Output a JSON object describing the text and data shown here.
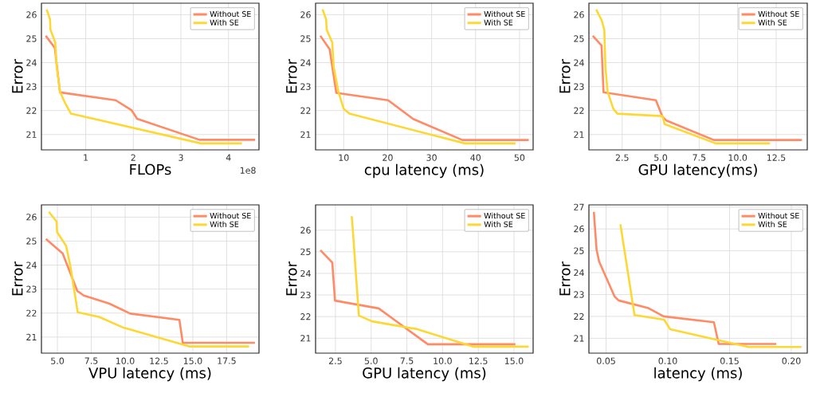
{
  "chart_data": [
    {
      "type": "line",
      "xlabel": "FLOPs",
      "ylabel": "Error",
      "annotations": [
        "1e8"
      ],
      "xlim": [
        0.07,
        4.64
      ],
      "ylim": [
        20.36,
        26.48
      ],
      "xticks": [
        1,
        2,
        3,
        4
      ],
      "yticks": [
        21,
        22,
        23,
        24,
        25,
        26
      ],
      "grid": true,
      "legend": "top right",
      "series": [
        {
          "name": "Without SE",
          "color": "#ff8a65",
          "x": [
            0.16,
            0.35,
            0.46,
            1.63,
            1.96,
            2.08,
            3.39,
            4.56
          ],
          "values": [
            25.12,
            24.62,
            22.76,
            22.43,
            22.02,
            21.66,
            20.78,
            20.78
          ]
        },
        {
          "name": "With SE",
          "color": "#fdd835",
          "x": [
            0.18,
            0.25,
            0.26,
            0.36,
            0.39,
            0.46,
            0.57,
            0.69,
            3.42,
            4.28
          ],
          "values": [
            26.22,
            25.81,
            25.37,
            24.84,
            23.84,
            22.79,
            22.3,
            21.87,
            20.63,
            20.63
          ]
        }
      ]
    },
    {
      "type": "line",
      "xlabel": "cpu latency (ms)",
      "ylabel": "Error",
      "xlim": [
        3.6,
        53.1
      ],
      "ylim": [
        20.36,
        26.48
      ],
      "xticks": [
        10,
        20,
        30,
        40,
        50
      ],
      "yticks": [
        21,
        22,
        23,
        24,
        25,
        26
      ],
      "grid": true,
      "legend": "top right",
      "series": [
        {
          "name": "Without SE",
          "color": "#ff8a65",
          "x": [
            4.68,
            6.8,
            8.31,
            20.1,
            25.8,
            37.0,
            52.1
          ],
          "values": [
            25.12,
            24.56,
            22.74,
            22.43,
            21.65,
            20.77,
            20.77
          ]
        },
        {
          "name": "With SE",
          "color": "#fdd835",
          "x": [
            5.17,
            6.0,
            6.13,
            7.4,
            7.7,
            8.79,
            10.0,
            11.3,
            37.6,
            49.1
          ],
          "values": [
            26.22,
            25.81,
            25.37,
            24.84,
            23.84,
            22.79,
            22.07,
            21.87,
            20.63,
            20.63
          ]
        }
      ]
    },
    {
      "type": "line",
      "xlabel": "GPU latency(ms)",
      "ylabel": "Error",
      "xlim": [
        0.34,
        14.52
      ],
      "ylim": [
        20.36,
        26.48
      ],
      "xticks": [
        {
          "value": 2.5,
          "label": "2.5"
        },
        {
          "value": 5,
          "label": "5.0"
        },
        {
          "value": 7.5,
          "label": "7.5"
        },
        {
          "value": 10,
          "label": "10.0"
        },
        {
          "value": 12.5,
          "label": "12.5"
        }
      ],
      "yticks": [
        21,
        22,
        23,
        24,
        25,
        26
      ],
      "grid": true,
      "legend": "top right",
      "series": [
        {
          "name": "Without SE",
          "color": "#ff8a65",
          "x": [
            0.59,
            1.16,
            1.29,
            4.69,
            5.12,
            5.38,
            8.45,
            14.17
          ],
          "values": [
            25.12,
            24.71,
            22.76,
            22.43,
            21.74,
            21.58,
            20.77,
            20.77
          ]
        },
        {
          "name": "With SE",
          "color": "#fdd835",
          "x": [
            0.81,
            1.16,
            1.34,
            1.41,
            1.55,
            1.93,
            2.19,
            5.12,
            5.26,
            8.57,
            12.1
          ],
          "values": [
            26.22,
            25.78,
            25.37,
            23.84,
            22.79,
            22.07,
            21.87,
            21.77,
            21.43,
            20.63,
            20.63
          ]
        }
      ]
    },
    {
      "type": "line",
      "xlabel": "VPU latency (ms)",
      "ylabel": "Error",
      "xlim": [
        3.82,
        19.89
      ],
      "ylim": [
        20.33,
        26.51
      ],
      "xticks": [
        {
          "value": 5,
          "label": "5.0"
        },
        {
          "value": 7.5,
          "label": "7.5"
        },
        {
          "value": 10,
          "label": "10.0"
        },
        {
          "value": 12.5,
          "label": "12.5"
        },
        {
          "value": 15,
          "label": "15.0"
        },
        {
          "value": 17.5,
          "label": "17.5"
        }
      ],
      "yticks": [
        21,
        22,
        23,
        24,
        25,
        26
      ],
      "grid": true,
      "legend": "top right",
      "series": [
        {
          "name": "Without SE",
          "color": "#ff8a65",
          "x": [
            4.15,
            5.39,
            6.47,
            6.95,
            8.82,
            10.38,
            14.01,
            14.26,
            19.59
          ],
          "values": [
            25.09,
            24.48,
            22.92,
            22.73,
            22.4,
            21.98,
            21.72,
            20.76,
            20.76
          ]
        },
        {
          "name": "With SE",
          "color": "#fdd835",
          "x": [
            4.37,
            4.94,
            4.98,
            5.64,
            5.97,
            6.5,
            8.07,
            9.89,
            14.73,
            19.16
          ],
          "values": [
            26.22,
            25.81,
            25.37,
            24.81,
            23.92,
            22.03,
            21.84,
            21.39,
            20.61,
            20.61
          ]
        }
      ]
    },
    {
      "type": "line",
      "xlabel": "GPU latency (ms)",
      "ylabel": "Error",
      "xlim": [
        1.11,
        16.34
      ],
      "ylim": [
        20.31,
        27.17
      ],
      "xticks": [
        {
          "value": 2.5,
          "label": "2.5"
        },
        {
          "value": 5,
          "label": "5.0"
        },
        {
          "value": 7.5,
          "label": "7.5"
        },
        {
          "value": 10,
          "label": "10.0"
        },
        {
          "value": 12.5,
          "label": "12.5"
        },
        {
          "value": 15,
          "label": "15.0"
        }
      ],
      "yticks": [
        21,
        22,
        23,
        24,
        25,
        26
      ],
      "grid": true,
      "legend": "top right",
      "series": [
        {
          "name": "Without SE",
          "color": "#ff8a65",
          "x": [
            1.45,
            2.28,
            2.47,
            5.53,
            8.97,
            15.1
          ],
          "values": [
            25.07,
            24.5,
            22.74,
            22.38,
            20.72,
            20.72
          ]
        },
        {
          "name": "With SE",
          "color": "#fdd835",
          "x": [
            3.64,
            3.71,
            4.14,
            5.07,
            8.23,
            12.13,
            16.03
          ],
          "values": [
            26.65,
            26.08,
            22.05,
            21.78,
            21.42,
            20.61,
            20.61
          ]
        }
      ]
    },
    {
      "type": "line",
      "xlabel": "latency (ms)",
      "ylabel": "Error",
      "xlim": [
        0.0361,
        0.2129
      ],
      "ylim": [
        20.32,
        27.1
      ],
      "xticks": [
        {
          "value": 0.05,
          "label": "0.05"
        },
        {
          "value": 0.1,
          "label": "0.10"
        },
        {
          "value": 0.15,
          "label": "0.15"
        },
        {
          "value": 0.2,
          "label": "0.20"
        }
      ],
      "yticks": [
        21,
        22,
        23,
        24,
        25,
        26,
        27
      ],
      "grid": true,
      "legend": "top right",
      "series": [
        {
          "name": "Without SE",
          "color": "#ff8a65",
          "x": [
            0.0401,
            0.0423,
            0.0444,
            0.0569,
            0.0601,
            0.0837,
            0.0966,
            0.1373,
            0.1412,
            0.1878
          ],
          "values": [
            26.78,
            25.05,
            24.5,
            22.91,
            22.73,
            22.39,
            22.0,
            21.73,
            20.74,
            20.74
          ]
        },
        {
          "name": "With SE",
          "color": "#fdd835",
          "x": [
            0.0616,
            0.073,
            0.097,
            0.1019,
            0.1652,
            0.2082
          ],
          "values": [
            26.21,
            22.06,
            21.85,
            21.41,
            20.6,
            20.6
          ]
        }
      ]
    }
  ]
}
